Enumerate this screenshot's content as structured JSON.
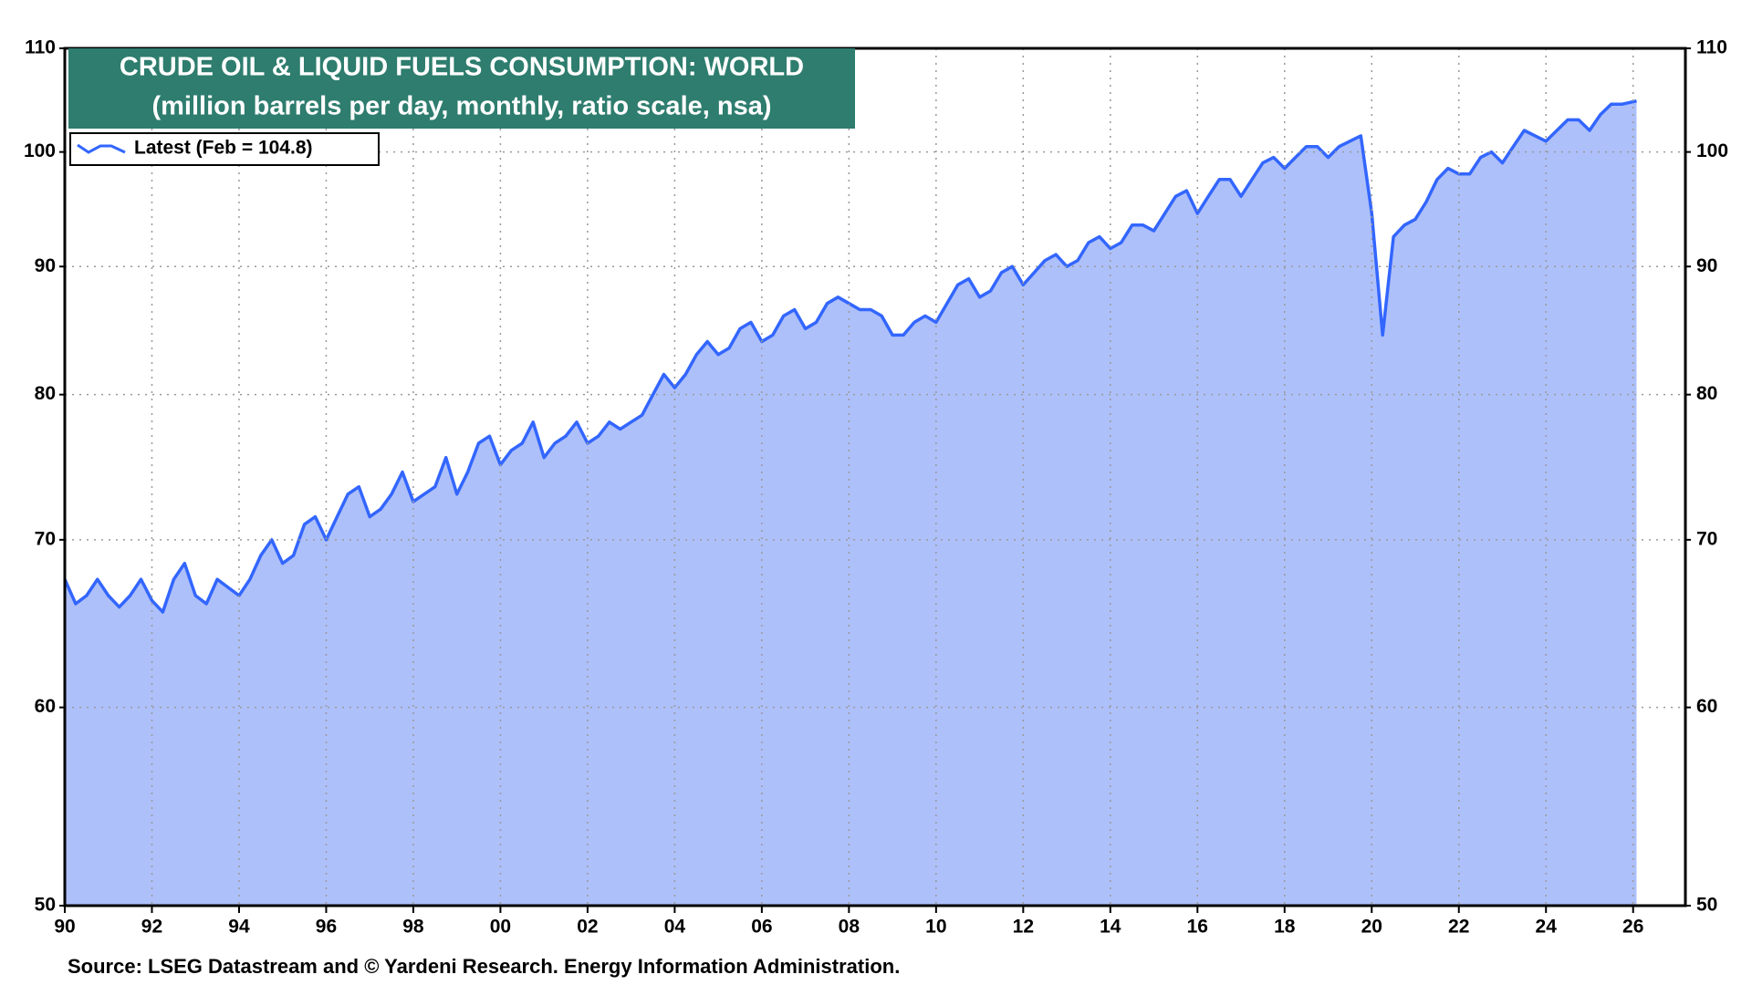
{
  "chart_data": {
    "type": "area",
    "title": "CRUDE OIL & LIQUID FUELS CONSUMPTION: WORLD",
    "subtitle": "(million barrels per day, monthly, ratio scale, nsa)",
    "source": "Source: LSEG Datastream and © Yardeni Research. Energy Information Administration.",
    "y_log_scale": true,
    "grid": true,
    "legend": "upper left",
    "y_axis_both_sides": true,
    "xlim": [
      1990,
      2027.2
    ],
    "ylim": [
      50,
      110
    ],
    "yticks": [
      50,
      60,
      70,
      80,
      90,
      100,
      110
    ],
    "xticks": [
      {
        "value": 1990,
        "label": "90"
      },
      {
        "value": 1992,
        "label": "92"
      },
      {
        "value": 1994,
        "label": "94"
      },
      {
        "value": 1996,
        "label": "96"
      },
      {
        "value": 1998,
        "label": "98"
      },
      {
        "value": 2000,
        "label": "00"
      },
      {
        "value": 2002,
        "label": "02"
      },
      {
        "value": 2004,
        "label": "04"
      },
      {
        "value": 2006,
        "label": "06"
      },
      {
        "value": 2008,
        "label": "08"
      },
      {
        "value": 2010,
        "label": "10"
      },
      {
        "value": 2012,
        "label": "12"
      },
      {
        "value": 2014,
        "label": "14"
      },
      {
        "value": 2016,
        "label": "16"
      },
      {
        "value": 2018,
        "label": "18"
      },
      {
        "value": 2020,
        "label": "20"
      },
      {
        "value": 2022,
        "label": "22"
      },
      {
        "value": 2024,
        "label": "24"
      },
      {
        "value": 2026,
        "label": "26"
      }
    ],
    "x": [
      1990,
      1990.25,
      1990.5,
      1990.75,
      1991,
      1991.25,
      1991.5,
      1991.75,
      1992,
      1992.25,
      1992.5,
      1992.75,
      1993,
      1993.25,
      1993.5,
      1993.75,
      1994,
      1994.25,
      1994.5,
      1994.75,
      1995,
      1995.25,
      1995.5,
      1995.75,
      1996,
      1996.25,
      1996.5,
      1996.75,
      1997,
      1997.25,
      1997.5,
      1997.75,
      1998,
      1998.25,
      1998.5,
      1998.75,
      1999,
      1999.25,
      1999.5,
      1999.75,
      2000,
      2000.25,
      2000.5,
      2000.75,
      2001,
      2001.25,
      2001.5,
      2001.75,
      2002,
      2002.25,
      2002.5,
      2002.75,
      2003,
      2003.25,
      2003.5,
      2003.75,
      2004,
      2004.25,
      2004.5,
      2004.75,
      2005,
      2005.25,
      2005.5,
      2005.75,
      2006,
      2006.25,
      2006.5,
      2006.75,
      2007,
      2007.25,
      2007.5,
      2007.75,
      2008,
      2008.25,
      2008.5,
      2008.75,
      2009,
      2009.25,
      2009.5,
      2009.75,
      2010,
      2010.25,
      2010.5,
      2010.75,
      2011,
      2011.25,
      2011.5,
      2011.75,
      2012,
      2012.25,
      2012.5,
      2012.75,
      2013,
      2013.25,
      2013.5,
      2013.75,
      2014,
      2014.25,
      2014.5,
      2014.75,
      2015,
      2015.25,
      2015.5,
      2015.75,
      2016,
      2016.25,
      2016.5,
      2016.75,
      2017,
      2017.25,
      2017.5,
      2017.75,
      2018,
      2018.25,
      2018.5,
      2018.75,
      2019,
      2019.25,
      2019.5,
      2019.75,
      2020,
      2020.25,
      2020.5,
      2020.75,
      2021,
      2021.25,
      2021.5,
      2021.75,
      2022,
      2022.25,
      2022.5,
      2022.75,
      2023,
      2023.25,
      2023.5,
      2023.75,
      2024,
      2024.25,
      2024.5,
      2024.75,
      2025,
      2025.25,
      2025.5,
      2025.75,
      2026.08
    ],
    "series": [
      {
        "name": "Latest (Feb = 104.8)",
        "color": "#3366ff",
        "fill": "#aec0fa",
        "values": [
          67.5,
          66.0,
          66.5,
          67.5,
          66.5,
          65.8,
          66.5,
          67.5,
          66.2,
          65.5,
          67.5,
          68.5,
          66.5,
          66.0,
          67.5,
          67.0,
          66.5,
          67.5,
          69.0,
          70.0,
          68.5,
          69.0,
          71.0,
          71.5,
          70.0,
          71.5,
          73.0,
          73.5,
          71.5,
          72.0,
          73.0,
          74.5,
          72.5,
          73.0,
          73.5,
          75.5,
          73.0,
          74.5,
          76.5,
          77.0,
          75.0,
          76.0,
          76.5,
          78.0,
          75.5,
          76.5,
          77.0,
          78.0,
          76.5,
          77.0,
          78.0,
          77.5,
          78.0,
          78.5,
          80.0,
          81.5,
          80.5,
          81.5,
          83.0,
          84.0,
          83.0,
          83.5,
          85.0,
          85.5,
          84.0,
          84.5,
          86.0,
          86.5,
          85.0,
          85.5,
          87.0,
          87.5,
          87.0,
          86.5,
          86.5,
          86.0,
          84.5,
          84.5,
          85.5,
          86.0,
          85.5,
          87.0,
          88.5,
          89.0,
          87.5,
          88.0,
          89.5,
          90.0,
          88.5,
          89.5,
          90.5,
          91.0,
          90.0,
          90.5,
          92.0,
          92.5,
          91.5,
          92.0,
          93.5,
          93.5,
          93.0,
          94.5,
          96.0,
          96.5,
          94.5,
          96.0,
          97.5,
          97.5,
          96.0,
          97.5,
          99.0,
          99.5,
          98.5,
          99.5,
          100.5,
          100.5,
          99.5,
          100.5,
          101.0,
          101.5,
          94.5,
          84.5,
          92.5,
          93.5,
          94.0,
          95.5,
          97.5,
          98.5,
          98.0,
          98.0,
          99.5,
          100.0,
          99.0,
          100.5,
          102.0,
          101.5,
          101.0,
          102.0,
          103.0,
          103.0,
          102.0,
          103.5,
          104.5,
          104.5,
          104.8
        ]
      }
    ]
  }
}
